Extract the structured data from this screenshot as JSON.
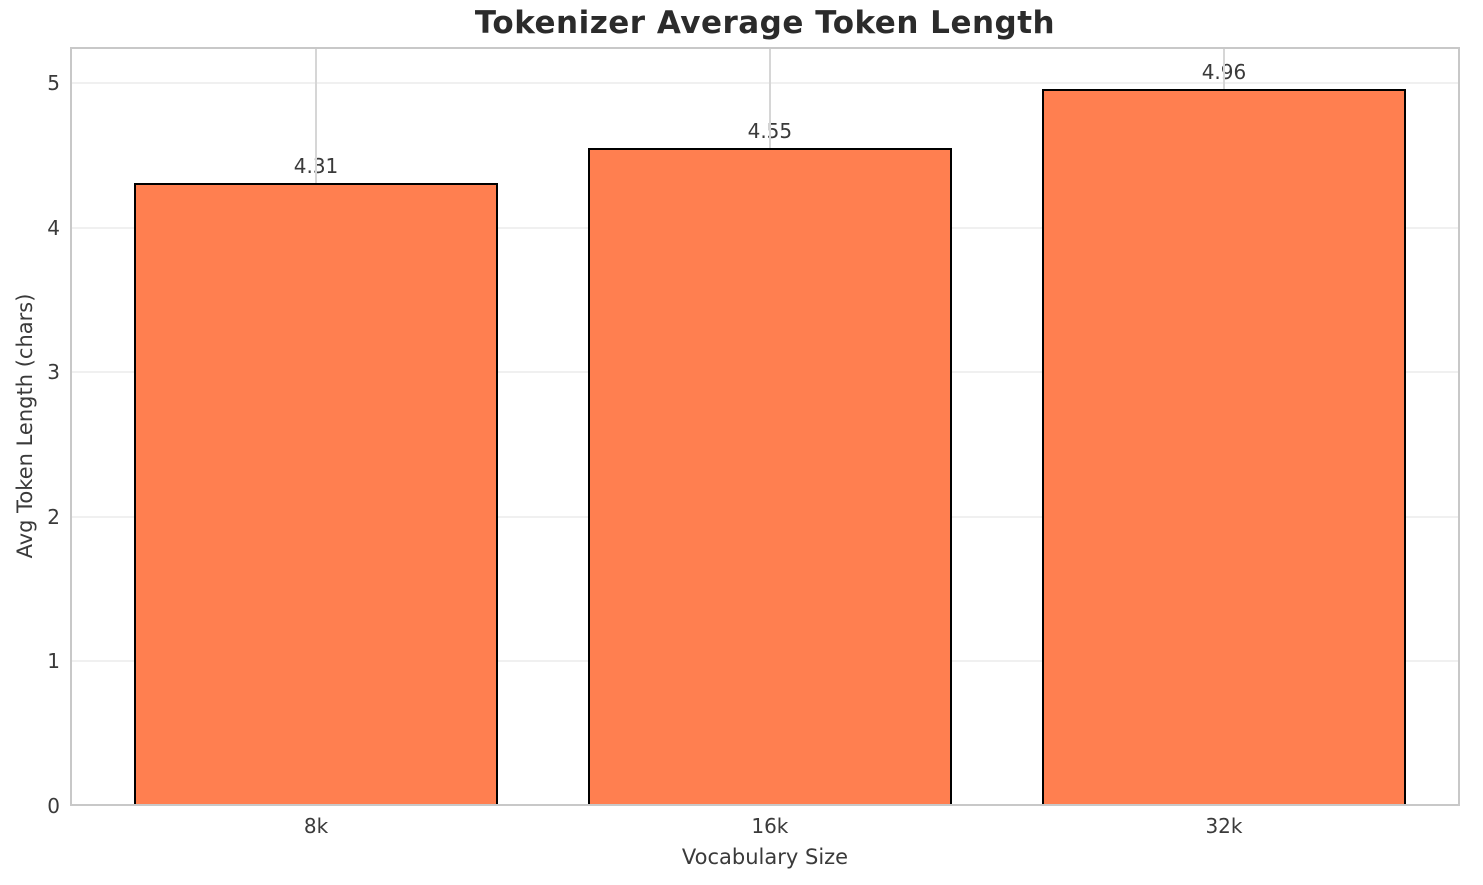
{
  "chart_data": {
    "type": "bar",
    "title": "Tokenizer Average Token Length",
    "xlabel": "Vocabulary Size",
    "ylabel": "Avg Token Length (chars)",
    "categories": [
      "8k",
      "16k",
      "32k"
    ],
    "values": [
      4.31,
      4.55,
      4.96
    ],
    "bar_value_labels": [
      "4.31",
      "4.55",
      "4.96"
    ],
    "yticks": [
      "0",
      "1",
      "2",
      "3",
      "4",
      "5"
    ],
    "ylim": [
      0,
      5.25
    ],
    "grid": true,
    "legend": "none",
    "colors": {
      "bar_fill": "#FF7F50",
      "bar_edge": "#000000",
      "background": "#FFFFFF",
      "spine": "#C8C8C8",
      "grid_vertical": "#D6D6D6",
      "grid_horizontal": "#F0F0F0",
      "title_text": "#2B2B2B",
      "axis_text": "#3A3A3A"
    }
  }
}
